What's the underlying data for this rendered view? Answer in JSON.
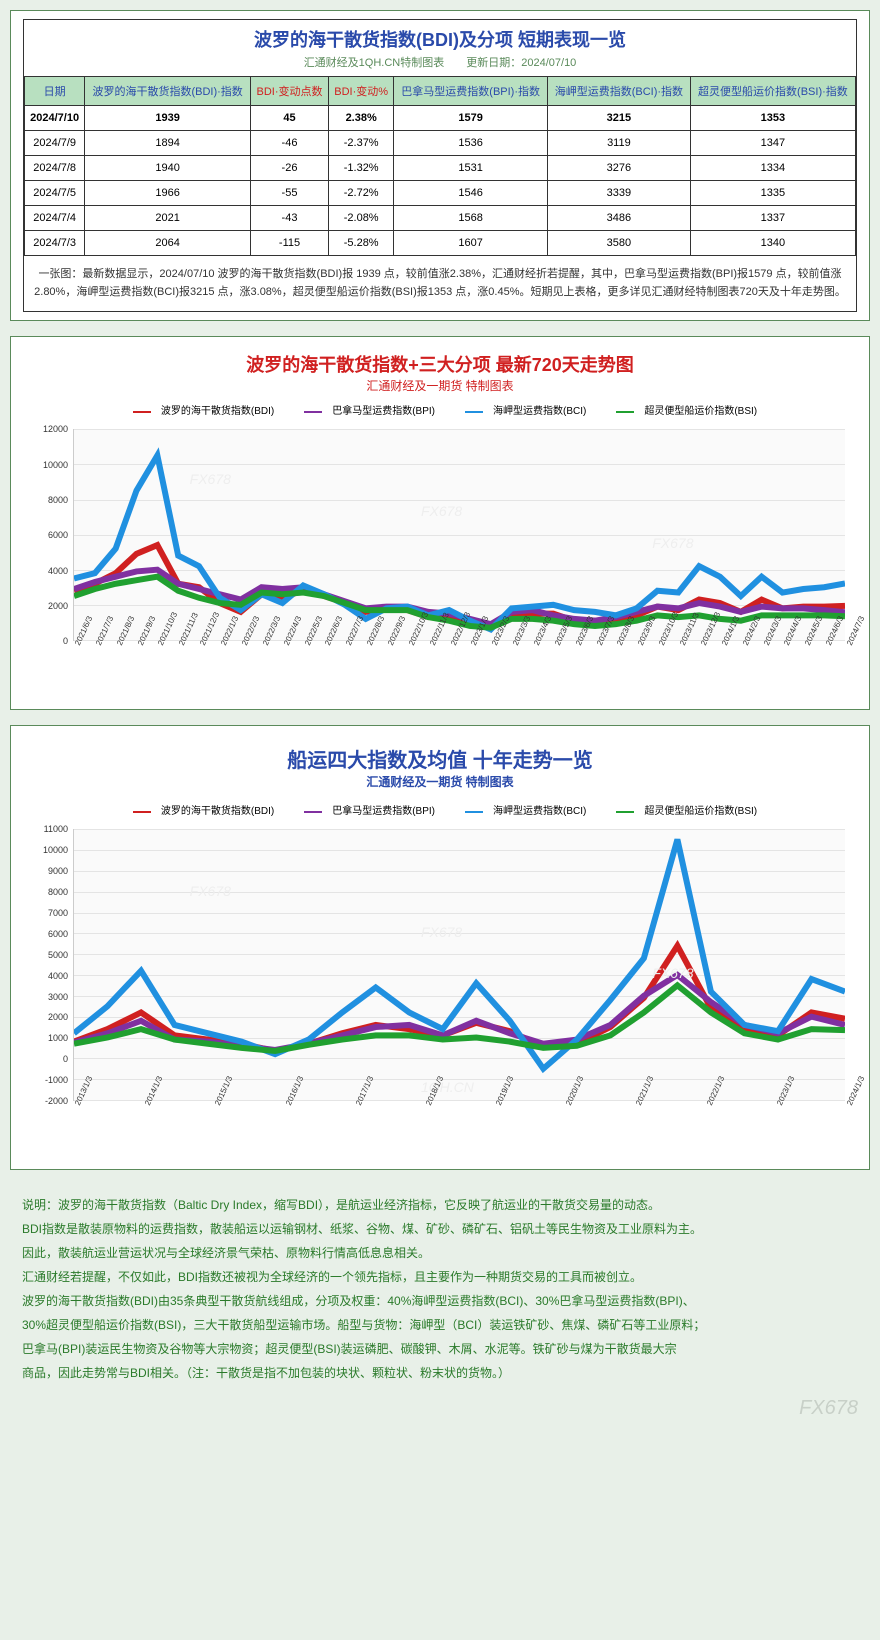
{
  "colors": {
    "page_bg": "#e8f0e8",
    "panel_border": "#5a8a5a",
    "title_blue": "#2a4aaa",
    "title_red": "#d02020",
    "header_bg": "#b8e0c0",
    "notes_green": "#2a7a2a",
    "grid": "#e4e4e4",
    "plot_bg": "#fafafa"
  },
  "table": {
    "title": "波罗的海干散货指数(BDI)及分项 短期表现一览",
    "subtitle": "汇通财经及1QH.CN特制图表　　更新日期：2024/07/10",
    "headers": [
      "日期",
      "波罗的海干散货指数(BDI)·指数",
      "BDI·变动点数",
      "BDI·变动%",
      "巴拿马型运费指数(BPI)·指数",
      "海岬型运费指数(BCI)·指数",
      "超灵便型船运价指数(BSI)·指数"
    ],
    "red_cols": [
      2,
      3
    ],
    "rows": [
      {
        "bold": true,
        "cells": [
          "2024/7/10",
          "1939",
          "45",
          "2.38%",
          "1579",
          "3215",
          "1353"
        ]
      },
      {
        "bold": false,
        "cells": [
          "2024/7/9",
          "1894",
          "-46",
          "-2.37%",
          "1536",
          "3119",
          "1347"
        ]
      },
      {
        "bold": false,
        "cells": [
          "2024/7/8",
          "1940",
          "-26",
          "-1.32%",
          "1531",
          "3276",
          "1334"
        ]
      },
      {
        "bold": false,
        "cells": [
          "2024/7/5",
          "1966",
          "-55",
          "-2.72%",
          "1546",
          "3339",
          "1335"
        ]
      },
      {
        "bold": false,
        "cells": [
          "2024/7/4",
          "2021",
          "-43",
          "-2.08%",
          "1568",
          "3486",
          "1337"
        ]
      },
      {
        "bold": false,
        "cells": [
          "2024/7/3",
          "2064",
          "-115",
          "-5.28%",
          "1607",
          "3580",
          "1340"
        ]
      }
    ],
    "caption": "一张图：最新数据显示，2024/07/10 波罗的海干散货指数(BDI)报 1939 点，较前值涨2.38%，汇通财经折若提醒，其中，巴拿马型运费指数(BPI)报1579 点，较前值涨2.80%，海岬型运费指数(BCI)报3215 点，涨3.08%，超灵便型船运价指数(BSI)报1353 点，涨0.45%。短期见上表格，更多详见汇通财经特制图表720天及十年走势图。"
  },
  "chart1": {
    "title": "波罗的海干散货指数+三大分项 最新720天走势图",
    "subtitle": "汇通财经及一期货 特制图表",
    "legend": [
      {
        "label": "波罗的海干散货指数(BDI)",
        "color": "#d02020"
      },
      {
        "label": "巴拿马型运费指数(BPI)",
        "color": "#8030a0"
      },
      {
        "label": "海岬型运费指数(BCI)",
        "color": "#2090e0"
      },
      {
        "label": "超灵便型船运价指数(BSI)",
        "color": "#20a030"
      }
    ],
    "ymin": 0,
    "ymax": 12000,
    "ystep": 2000,
    "xlabels": [
      "2021/6/3",
      "2021/7/3",
      "2021/8/3",
      "2021/9/3",
      "2021/10/3",
      "2021/11/3",
      "2021/12/3",
      "2022/1/3",
      "2022/2/3",
      "2022/3/3",
      "2022/4/3",
      "2022/5/3",
      "2022/6/3",
      "2022/7/3",
      "2022/8/3",
      "2022/9/3",
      "2022/10/3",
      "2022/11/3",
      "2022/12/3",
      "2023/1/3",
      "2023/2/3",
      "2023/3/3",
      "2023/4/3",
      "2023/5/3",
      "2023/6/3",
      "2023/7/3",
      "2023/8/3",
      "2023/9/3",
      "2023/10/3",
      "2023/11/3",
      "2023/12/3",
      "2024/1/3",
      "2024/2/3",
      "2024/3/3",
      "2024/4/3",
      "2024/5/3",
      "2024/6/3",
      "2024/7/3"
    ],
    "series": {
      "bdi": [
        2800,
        3200,
        3800,
        4900,
        5400,
        3200,
        3000,
        2100,
        1600,
        2600,
        2300,
        2900,
        2500,
        2100,
        1600,
        1800,
        1700,
        1300,
        1400,
        1000,
        700,
        1400,
        1500,
        1500,
        1100,
        1100,
        1100,
        1400,
        1900,
        1700,
        2300,
        2100,
        1600,
        2300,
        1800,
        1900,
        1900,
        1939
      ],
      "bpi": [
        2900,
        3300,
        3600,
        3900,
        4000,
        3200,
        2900,
        2600,
        2300,
        3000,
        2900,
        3000,
        2600,
        2200,
        1800,
        1900,
        1900,
        1600,
        1500,
        1200,
        900,
        1600,
        1700,
        1400,
        1200,
        1100,
        1300,
        1600,
        1900,
        1800,
        2100,
        1900,
        1600,
        1900,
        1800,
        1800,
        1700,
        1579
      ],
      "bci": [
        3500,
        3800,
        5200,
        8500,
        10500,
        4800,
        4200,
        2400,
        1700,
        2600,
        2100,
        3100,
        2600,
        2000,
        1200,
        1800,
        1900,
        1400,
        1700,
        1100,
        600,
        1800,
        1900,
        2000,
        1700,
        1600,
        1400,
        1800,
        2800,
        2700,
        4200,
        3600,
        2500,
        3600,
        2700,
        2900,
        3000,
        3215
      ],
      "bsi": [
        2500,
        2900,
        3200,
        3400,
        3600,
        2800,
        2400,
        2100,
        2000,
        2700,
        2600,
        2700,
        2500,
        2100,
        1700,
        1700,
        1700,
        1300,
        1100,
        800,
        700,
        1200,
        1200,
        1100,
        900,
        800,
        900,
        1100,
        1400,
        1300,
        1400,
        1200,
        1100,
        1400,
        1400,
        1400,
        1400,
        1353
      ]
    },
    "watermark": "FX678"
  },
  "chart2": {
    "title": "船运四大指数及均值 十年走势一览",
    "subtitle": "汇通财经及一期货 特制图表",
    "legend": [
      {
        "label": "波罗的海干散货指数(BDI)",
        "color": "#d02020"
      },
      {
        "label": "巴拿马型运费指数(BPI)",
        "color": "#8030a0"
      },
      {
        "label": "海岬型运费指数(BCI)",
        "color": "#2090e0"
      },
      {
        "label": "超灵便型船运价指数(BSI)",
        "color": "#20a030"
      }
    ],
    "ymin": -2000,
    "ymax": 11000,
    "ystep": 1000,
    "xlabels": [
      "2013/1/3",
      "2014/1/3",
      "2015/1/3",
      "2016/1/3",
      "2017/1/3",
      "2018/1/3",
      "2019/1/3",
      "2020/1/3",
      "2021/1/3",
      "2022/1/3",
      "2023/1/3",
      "2024/1/3"
    ],
    "series": {
      "bdi": [
        800,
        1400,
        2200,
        1100,
        900,
        700,
        350,
        700,
        1200,
        1600,
        1400,
        1100,
        1700,
        1300,
        550,
        700,
        1500,
        2900,
        5400,
        2400,
        1400,
        1100,
        2200,
        1900
      ],
      "bpi": [
        750,
        1200,
        1800,
        900,
        800,
        600,
        400,
        700,
        1100,
        1500,
        1600,
        1100,
        1800,
        1200,
        700,
        900,
        1600,
        3000,
        4000,
        2700,
        1600,
        1200,
        2000,
        1600
      ],
      "bci": [
        1200,
        2500,
        4200,
        1600,
        1200,
        800,
        200,
        900,
        2200,
        3400,
        2200,
        1400,
        3600,
        1800,
        -500,
        900,
        2800,
        4800,
        10500,
        3200,
        1600,
        1300,
        3800,
        3200
      ],
      "bsi": [
        700,
        1000,
        1400,
        900,
        700,
        500,
        350,
        650,
        900,
        1100,
        1100,
        900,
        1000,
        800,
        500,
        600,
        1100,
        2200,
        3500,
        2200,
        1200,
        900,
        1400,
        1350
      ]
    },
    "watermark": "FX678",
    "wm_bottom": "1QH.CN"
  },
  "notes": [
    "说明：波罗的海干散货指数（Baltic Dry Index，缩写BDI），是航运业经济指标，它反映了航运业的干散货交易量的动态。",
    "BDI指数是散装原物料的运费指数，散装船运以运输钢材、纸浆、谷物、煤、矿砂、磷矿石、铝矾土等民生物资及工业原料为主。",
    "因此，散装航运业营运状况与全球经济景气荣枯、原物料行情高低息息相关。",
    "汇通财经若提醒，不仅如此，BDI指数还被视为全球经济的一个领先指标，且主要作为一种期货交易的工具而被创立。",
    "波罗的海干散货指数(BDI)由35条典型干散货航线组成，分项及权重：40%海岬型运费指数(BCI)、30%巴拿马型运费指数(BPI)、",
    "30%超灵便型船运价指数(BSI)，三大干散货船型运输市场。船型与货物：海岬型（BCI）装运铁矿砂、焦煤、磷矿石等工业原料；",
    "巴拿马(BPI)装运民生物资及谷物等大宗物资；超灵便型(BSI)装运磷肥、碳酸钾、木屑、水泥等。铁矿砂与煤为干散货最大宗",
    "商品，因此走势常与BDI相关。（注：干散货是指不加包装的块状、颗粒状、粉末状的货物。）"
  ],
  "footer_wm": "FX678"
}
